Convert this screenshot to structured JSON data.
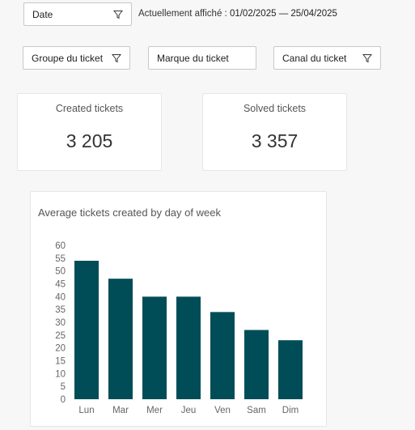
{
  "filters": {
    "date": {
      "label": "Date"
    },
    "group": {
      "label": "Groupe du ticket"
    },
    "brand": {
      "label": "Marque du ticket"
    },
    "channel": {
      "label": "Canal du ticket"
    }
  },
  "shown_range": {
    "prefix": "Actuellement affiché : ",
    "range": "01/02/2025 — 25/04/2025"
  },
  "kpis": {
    "created": {
      "label": "Created tickets",
      "value": "3 205"
    },
    "solved": {
      "label": "Solved tickets",
      "value": "3 357"
    }
  },
  "colors": {
    "bar": "#004d57",
    "axis_text": "#666666"
  },
  "chart_data": {
    "type": "bar",
    "title": "Average tickets created by day of week",
    "categories": [
      "Lun",
      "Mar",
      "Mer",
      "Jeu",
      "Ven",
      "Sam",
      "Dim"
    ],
    "values": [
      54,
      47,
      40,
      40,
      34,
      27,
      23
    ],
    "ylim": [
      0,
      60
    ],
    "yticks": [
      0,
      5,
      10,
      15,
      20,
      25,
      30,
      35,
      40,
      45,
      50,
      55,
      60
    ],
    "xlabel": "",
    "ylabel": "",
    "grid": false,
    "legend": false
  }
}
